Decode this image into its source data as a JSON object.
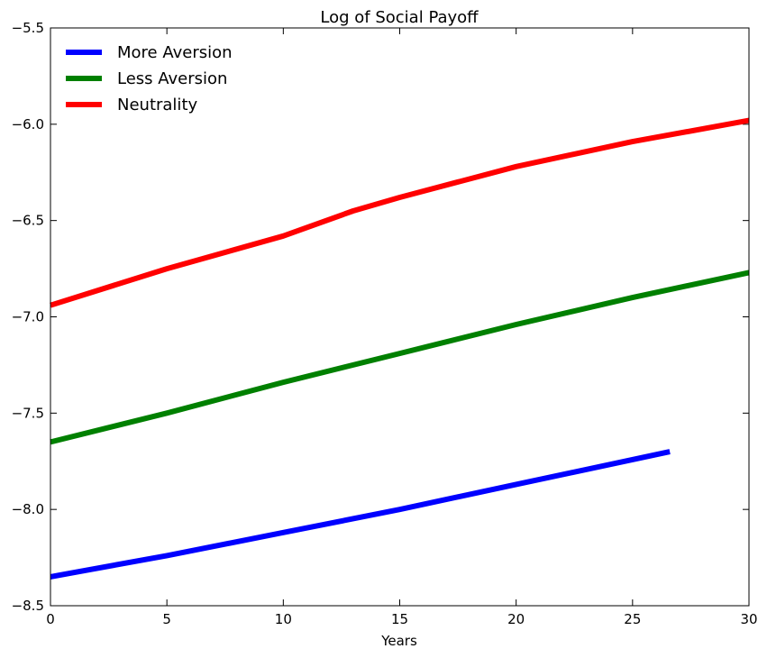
{
  "chart_data": {
    "type": "line",
    "title": "Log of Social Payoff",
    "xlabel": "Years",
    "ylabel": "",
    "xlim": [
      0,
      30
    ],
    "ylim": [
      -8.5,
      -5.5
    ],
    "x_ticks": [
      0,
      5,
      10,
      15,
      20,
      25,
      30
    ],
    "y_ticks": [
      -8.5,
      -8.0,
      -7.5,
      -7.0,
      -6.5,
      -6.0,
      -5.5
    ],
    "x_tick_labels": [
      "0",
      "5",
      "10",
      "15",
      "20",
      "25",
      "30"
    ],
    "y_tick_labels": [
      "−8.5",
      "−8.0",
      "−7.5",
      "−7.0",
      "−6.5",
      "−6.0",
      "−5.5"
    ],
    "grid": false,
    "legend_position": "top-left",
    "series": [
      {
        "name": "More Aversion",
        "color": "#0000ff",
        "x": [
          0,
          5,
          10,
          15,
          20,
          26.6
        ],
        "y": [
          -8.35,
          -8.24,
          -8.12,
          -8.0,
          -7.87,
          -7.7
        ]
      },
      {
        "name": "Less Aversion",
        "color": "#008000",
        "x": [
          0,
          5,
          10,
          15,
          20,
          25,
          30
        ],
        "y": [
          -7.65,
          -7.5,
          -7.34,
          -7.19,
          -7.04,
          -6.9,
          -6.77
        ]
      },
      {
        "name": "Neutrality",
        "color": "#ff0000",
        "x": [
          0,
          5,
          10,
          13,
          15,
          20,
          25,
          30
        ],
        "y": [
          -6.94,
          -6.75,
          -6.58,
          -6.45,
          -6.38,
          -6.22,
          -6.09,
          -5.98
        ]
      }
    ]
  }
}
